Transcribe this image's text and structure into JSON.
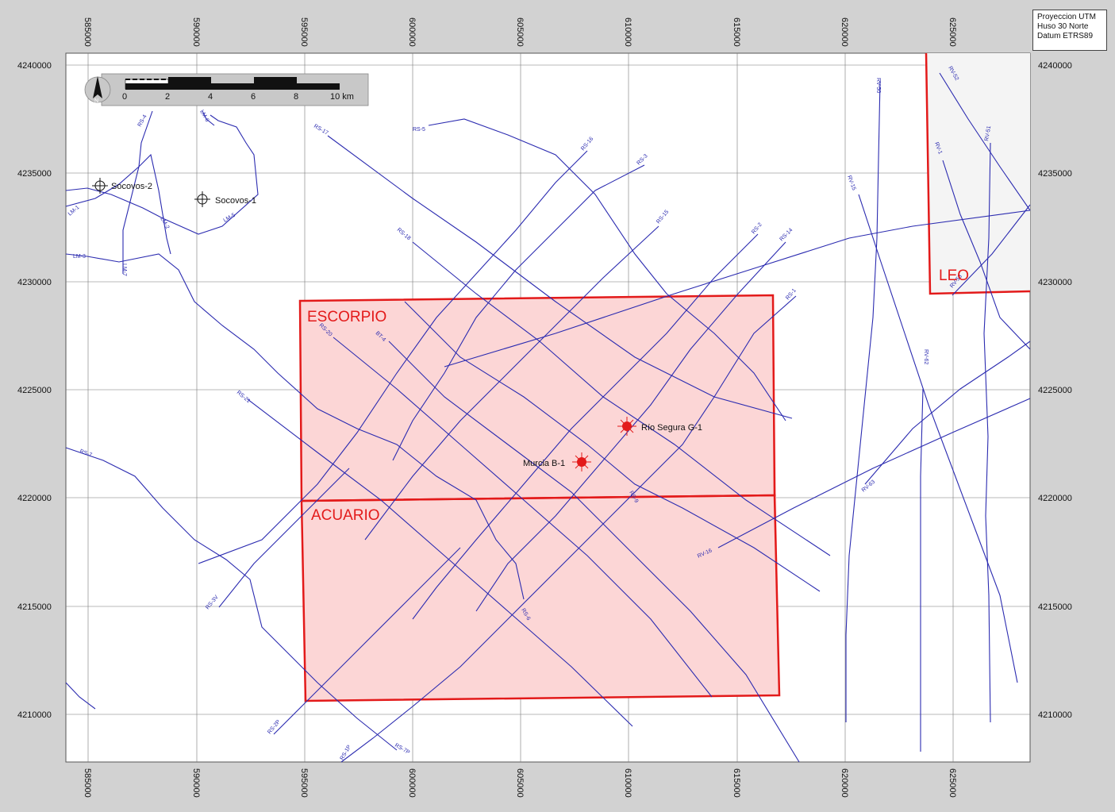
{
  "projection": [
    "Proyeccion UTM",
    "Huso 30 Norte",
    "Datum ETRS89"
  ],
  "axes": {
    "easting_ticks": [
      "585000",
      "590000",
      "595000",
      "600000",
      "605000",
      "610000",
      "615000",
      "620000",
      "625000"
    ],
    "northing_ticks": [
      "4240000",
      "4235000",
      "4230000",
      "4225000",
      "4220000",
      "4215000",
      "4210000"
    ]
  },
  "scale_bar": {
    "labels": [
      "0",
      "2",
      "4",
      "6",
      "8",
      "10 km"
    ],
    "north": "N"
  },
  "blocks": [
    {
      "name": "ESCORPIO",
      "color": "#e31a1a"
    },
    {
      "name": "ACUARIO",
      "color": "#e31a1a"
    },
    {
      "name": "LEO",
      "color": "#e31a1a"
    }
  ],
  "wells": [
    {
      "name": "Socovos-2",
      "type": "dry"
    },
    {
      "name": "Socovos-1",
      "type": "dry"
    },
    {
      "name": "Río Segura G-1",
      "type": "target"
    },
    {
      "name": "Murcia B-1",
      "type": "target"
    }
  ],
  "seismic_lines": [
    "RS-4",
    "LM-6",
    "RS-17",
    "RS-5",
    "RS-16",
    "RS-3",
    "RV-50",
    "RV-52",
    "RV-51",
    "RV-1",
    "LM-1",
    "LM-2",
    "LM-5",
    "LM-3",
    "LM-7",
    "RS-15",
    "RS-18",
    "RS-2",
    "RS-14",
    "RV-15",
    "RV-53",
    "RS-1",
    "RS-20",
    "BT-4",
    "RV-62",
    "RS-21",
    "RS-7",
    "RS-9",
    "RV-63",
    "RV-16",
    "RS-3V",
    "RS-6",
    "RS-2P",
    "RS-1P",
    "RS-7P"
  ],
  "colors": {
    "line": "#2b2bb0",
    "block": "#e31a1a",
    "block_fill": "#fcd6d6",
    "leo_fill": "#f4f4f4",
    "frame": "#d2d2d2"
  }
}
